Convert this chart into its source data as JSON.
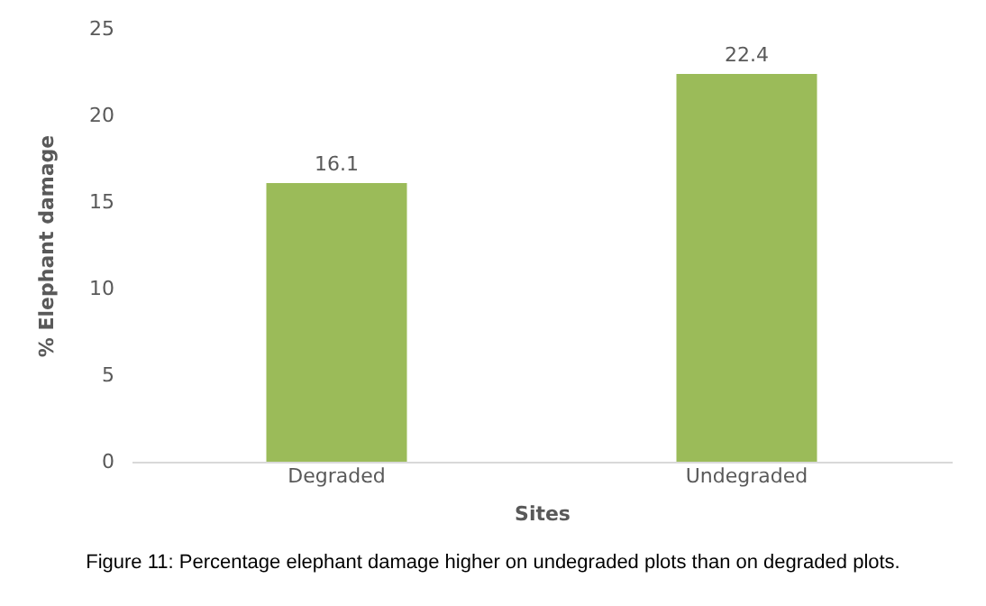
{
  "chart_data": {
    "type": "bar",
    "categories": [
      "Degraded",
      "Undegraded"
    ],
    "values": [
      16.1,
      22.4
    ],
    "color": "#9bbb59",
    "ylim": [
      0,
      25
    ],
    "yticks": [
      0,
      5,
      10,
      15,
      20,
      25
    ],
    "xlabel": "Sites",
    "ylabel": "% Elephant damage",
    "data_labels": true,
    "annotations": [
      "Figure 11: Percentage elephant damage higher on undegraded plots than on degraded plots."
    ]
  }
}
